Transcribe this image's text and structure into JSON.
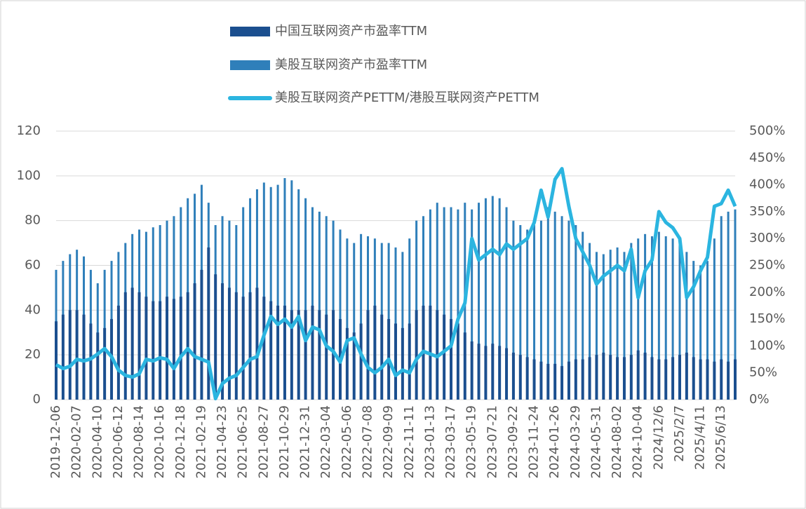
{
  "chart_data": {
    "type": "bar",
    "categories": [
      "2019-12-06",
      null,
      null,
      "2020-02-07",
      null,
      null,
      "2020-04-10",
      null,
      null,
      "2020-06-12",
      null,
      null,
      "2020-08-14",
      null,
      null,
      "2020-10-16",
      null,
      null,
      "2020-12-18",
      null,
      null,
      "2021-02-19",
      null,
      null,
      "2021-04-23",
      null,
      null,
      "2021-06-25",
      null,
      null,
      "2021-08-27",
      null,
      null,
      "2021-10-29",
      null,
      null,
      "2021-12-31",
      null,
      null,
      "2022-03-04",
      null,
      null,
      "2022-05-06",
      null,
      null,
      "2022-07-08",
      null,
      null,
      "2022-09-09",
      null,
      null,
      "2022-11-11",
      null,
      null,
      "2023-01-13",
      null,
      null,
      "2023-03-17",
      null,
      null,
      "2023-05-19",
      null,
      null,
      "2023-07-21",
      null,
      null,
      "2023-09-22",
      null,
      null,
      "2023-11-24",
      null,
      null,
      "2024-01-26",
      null,
      null,
      "2024-03-29",
      null,
      null,
      "2024-05-31",
      null,
      null,
      "2024-08-02",
      null,
      null,
      "2024-10-04",
      null,
      null,
      "2024/12/6",
      null,
      null,
      "2025/2/7",
      null,
      null,
      "2025/4/11",
      null,
      null,
      "2025/6/13",
      null,
      null
    ],
    "series": [
      {
        "name": "美股互联网资产市盈率TTM",
        "color": "#2f7fba",
        "values": [
          58,
          62,
          65,
          67,
          64,
          58,
          52,
          58,
          62,
          66,
          70,
          74,
          76,
          75,
          77,
          78,
          80,
          82,
          86,
          90,
          92,
          96,
          88,
          78,
          82,
          80,
          78,
          86,
          90,
          94,
          97,
          95,
          96,
          99,
          98,
          94,
          90,
          86,
          84,
          82,
          80,
          76,
          72,
          70,
          74,
          73,
          72,
          70,
          70,
          68,
          66,
          72,
          80,
          82,
          85,
          88,
          86,
          86,
          85,
          88,
          85,
          88,
          90,
          91,
          90,
          86,
          80,
          78,
          76,
          78,
          80,
          86,
          84,
          82,
          80,
          78,
          75,
          70,
          66,
          65,
          67,
          68,
          66,
          70,
          72,
          74,
          73,
          75,
          73,
          72,
          70,
          66,
          62,
          60,
          62,
          72,
          82,
          84,
          85
        ]
      },
      {
        "name": "中国互联网资产市盈率TTM",
        "color": "#1b4f8f",
        "values": [
          35,
          38,
          40,
          40,
          38,
          34,
          30,
          32,
          36,
          42,
          48,
          50,
          48,
          46,
          44,
          44,
          46,
          45,
          46,
          48,
          52,
          58,
          68,
          56,
          52,
          50,
          48,
          46,
          48,
          50,
          46,
          44,
          42,
          42,
          40,
          40,
          40,
          42,
          40,
          38,
          40,
          36,
          32,
          30,
          34,
          40,
          42,
          38,
          36,
          34,
          32,
          34,
          40,
          42,
          42,
          40,
          38,
          36,
          34,
          30,
          26,
          25,
          24,
          25,
          24,
          23,
          21,
          20,
          19,
          18,
          17,
          16,
          16,
          15,
          17,
          18,
          18,
          19,
          20,
          21,
          20,
          19,
          19,
          20,
          22,
          21,
          19,
          18,
          18,
          19,
          20,
          21,
          19,
          18,
          18,
          17,
          18,
          17,
          18
        ]
      },
      {
        "name": "美股互联网资产PETTM/港股互联网资产PETTM",
        "color": "#2bb5e0",
        "type": "line",
        "axis": "y2",
        "values": [
          65,
          58,
          62,
          75,
          72,
          76,
          85,
          95,
          80,
          55,
          45,
          42,
          48,
          75,
          72,
          78,
          75,
          58,
          80,
          95,
          80,
          75,
          70,
          2,
          30,
          40,
          45,
          60,
          75,
          80,
          120,
          155,
          140,
          150,
          135,
          155,
          110,
          135,
          130,
          100,
          90,
          70,
          110,
          115,
          85,
          60,
          50,
          60,
          75,
          45,
          55,
          50,
          75,
          90,
          85,
          80,
          90,
          100,
          150,
          180,
          300,
          260,
          270,
          280,
          270,
          290,
          280,
          290,
          300,
          330,
          390,
          340,
          410,
          430,
          360,
          300,
          275,
          250,
          215,
          230,
          240,
          250,
          240,
          280,
          190,
          240,
          260,
          350,
          330,
          320,
          300,
          190,
          210,
          240,
          265,
          360,
          365,
          390,
          360
        ]
      }
    ],
    "ylim": [
      0,
      120
    ],
    "yticks": [
      0,
      20,
      40,
      60,
      80,
      100,
      120
    ],
    "y2lim": [
      0,
      500
    ],
    "y2ticks": [
      {
        "value": 0,
        "label": "0%"
      },
      {
        "value": 50,
        "label": "50%"
      },
      {
        "value": 100,
        "label": "100%"
      },
      {
        "value": 150,
        "label": "150%"
      },
      {
        "value": 200,
        "label": "200%"
      },
      {
        "value": 250,
        "label": "250%"
      },
      {
        "value": 300,
        "label": "300%"
      },
      {
        "value": 350,
        "label": "350%"
      },
      {
        "value": 400,
        "label": "400%"
      },
      {
        "value": 450,
        "label": "450%"
      },
      {
        "value": 500,
        "label": "500%"
      }
    ],
    "grid": true
  }
}
